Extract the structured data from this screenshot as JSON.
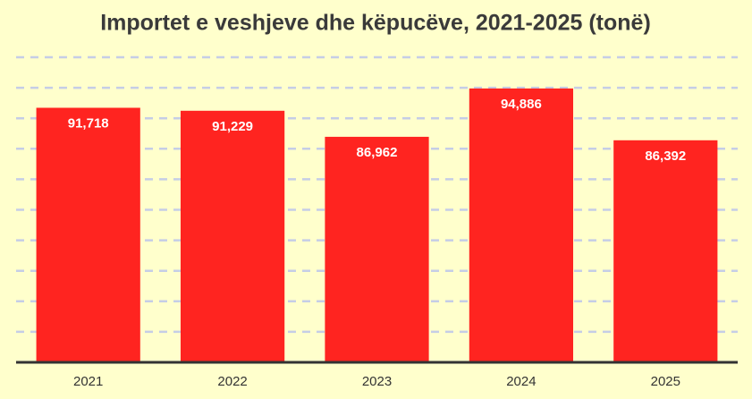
{
  "chart_data": {
    "type": "bar",
    "title": "Importet e veshjeve dhe këpucëve, 2021-2025 (tonë)",
    "categories": [
      "2021",
      "2022",
      "2023",
      "2024",
      "2025"
    ],
    "values": [
      91718,
      91229,
      86962,
      94886,
      86392
    ],
    "value_labels": [
      "91,718",
      "91,229",
      "86,962",
      "94,886",
      "86,392"
    ],
    "color": "#ff2420",
    "ylim": [
      50000,
      100000
    ],
    "yticks": [
      50000,
      55000,
      60000,
      65000,
      70000,
      75000,
      80000,
      85000,
      90000,
      95000,
      100000
    ],
    "grid": true
  }
}
